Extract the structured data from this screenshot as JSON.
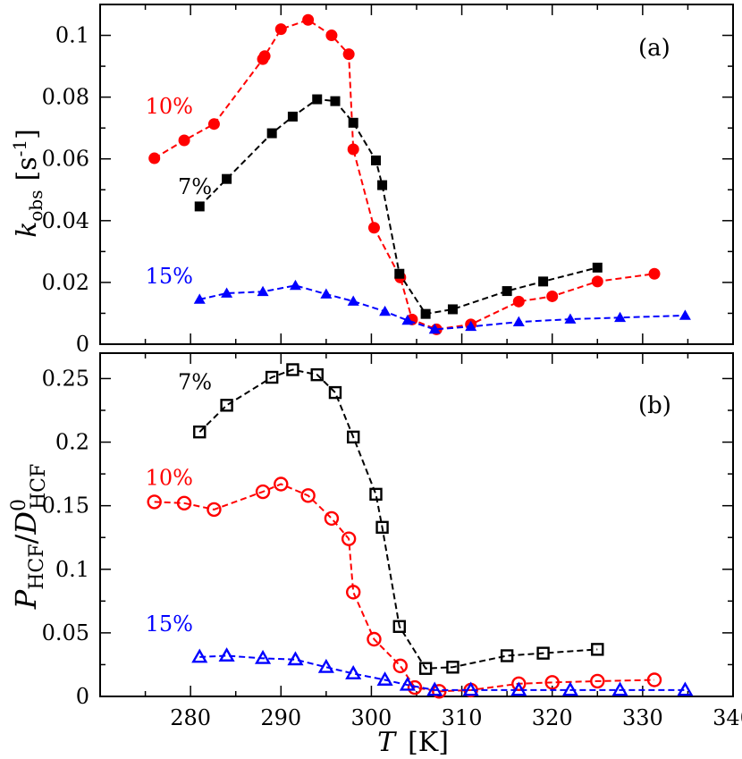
{
  "chart_data": [
    {
      "type": "line",
      "panel": "(a)",
      "ylabel": "k_obs [s-1]",
      "ylabel_parts": {
        "main": "k",
        "sub": "obs",
        "unit_open": "[s",
        "unit_sup": "-1",
        "unit_close": "]"
      },
      "ylim": [
        0,
        0.11
      ],
      "yticks": [
        0,
        0.02,
        0.04,
        0.06,
        0.08,
        0.1
      ],
      "ytick_labels": [
        "0",
        "0.02",
        "0.04",
        "0.06",
        "0.08",
        "0.1"
      ],
      "xlim": [
        270,
        340
      ],
      "xticks": [
        280,
        290,
        300,
        310,
        320,
        330,
        340
      ],
      "series": [
        {
          "name": "10%",
          "color": "#ff0000",
          "marker": "circle",
          "filled": true,
          "label_pos": [
            275,
            0.077
          ],
          "x": [
            276,
            279.3,
            282.6,
            288,
            288.2,
            290,
            293,
            295.6,
            297.5,
            298,
            300.3,
            303.2,
            304.5,
            307.2,
            311,
            316.3,
            320,
            325,
            331.3
          ],
          "y": [
            0.0602,
            0.066,
            0.0713,
            0.0923,
            0.0933,
            0.102,
            0.105,
            0.1,
            0.0939,
            0.0631,
            0.0377,
            0.0216,
            0.008,
            0.0048,
            0.0064,
            0.0138,
            0.0155,
            0.0203,
            0.0228
          ]
        },
        {
          "name": "7%",
          "color": "#000000",
          "marker": "square",
          "filled": true,
          "label_pos": [
            278.6,
            0.051
          ],
          "x": [
            281,
            284,
            289,
            291.3,
            294,
            296,
            298,
            300.5,
            301.2,
            303.1,
            306,
            309,
            315,
            319,
            325
          ],
          "y": [
            0.0446,
            0.0535,
            0.0683,
            0.0737,
            0.0793,
            0.0787,
            0.0717,
            0.0595,
            0.0515,
            0.0228,
            0.0098,
            0.0113,
            0.0172,
            0.0203,
            0.0248
          ]
        },
        {
          "name": "15%",
          "color": "#0000ff",
          "marker": "triangle",
          "filled": true,
          "label_pos": [
            275,
            0.022
          ],
          "x": [
            281,
            284,
            288,
            291.6,
            295,
            298,
            301.5,
            304,
            307,
            311,
            316.3,
            322,
            327.5,
            334.7
          ],
          "y": [
            0.0145,
            0.0165,
            0.017,
            0.019,
            0.0162,
            0.0139,
            0.0106,
            0.0077,
            0.0048,
            0.0057,
            0.0072,
            0.0081,
            0.0086,
            0.0093
          ]
        }
      ]
    },
    {
      "type": "line",
      "panel": "(b)",
      "xlabel": "T [K]",
      "ylabel": "P_HCF / D^0_HCF",
      "ylabel_parts": {
        "p": "P",
        "p_sub": "HCF",
        "slash": "/",
        "d": "D",
        "d_sup": "0",
        "d_sub": "HCF"
      },
      "ylim": [
        0,
        0.27
      ],
      "yticks": [
        0,
        0.05,
        0.1,
        0.15,
        0.2,
        0.25
      ],
      "ytick_labels": [
        "0",
        "0.05",
        "0.1",
        "0.15",
        "0.2",
        "0.25"
      ],
      "xlim": [
        270,
        340
      ],
      "xticks": [
        280,
        290,
        300,
        310,
        320,
        330,
        340
      ],
      "xtick_labels": [
        "280",
        "290",
        "300",
        "310",
        "320",
        "330",
        "340"
      ],
      "series": [
        {
          "name": "7%",
          "color": "#000000",
          "marker": "square",
          "filled": false,
          "label_pos": [
            278.6,
            0.247
          ],
          "x": [
            281,
            284,
            289,
            291.3,
            294,
            296,
            298,
            300.5,
            301.2,
            303.1,
            306,
            309,
            315,
            319,
            325
          ],
          "y": [
            0.208,
            0.229,
            0.251,
            0.257,
            0.253,
            0.239,
            0.204,
            0.159,
            0.133,
            0.055,
            0.022,
            0.023,
            0.032,
            0.034,
            0.037
          ]
        },
        {
          "name": "10%",
          "color": "#ff0000",
          "marker": "circle",
          "filled": false,
          "label_pos": [
            275,
            0.172
          ],
          "x": [
            276,
            279.3,
            282.6,
            288,
            290,
            293,
            295.6,
            297.5,
            298,
            300.3,
            303.2,
            304.8,
            307.5,
            311,
            316.3,
            320,
            325,
            331.3
          ],
          "y": [
            0.153,
            0.152,
            0.147,
            0.161,
            0.167,
            0.158,
            0.14,
            0.124,
            0.082,
            0.045,
            0.024,
            0.007,
            0.004,
            0.005,
            0.01,
            0.011,
            0.012,
            0.013
          ]
        },
        {
          "name": "15%",
          "color": "#0000ff",
          "marker": "triangle",
          "filled": false,
          "label_pos": [
            275,
            0.057
          ],
          "x": [
            281,
            284,
            288,
            291.6,
            295,
            298,
            301.5,
            304,
            307,
            311,
            316.3,
            322,
            327.5,
            334.7
          ],
          "y": [
            0.031,
            0.032,
            0.03,
            0.029,
            0.023,
            0.018,
            0.013,
            0.009,
            0.005,
            0.005,
            0.005,
            0.005,
            0.005,
            0.005
          ]
        }
      ]
    }
  ]
}
